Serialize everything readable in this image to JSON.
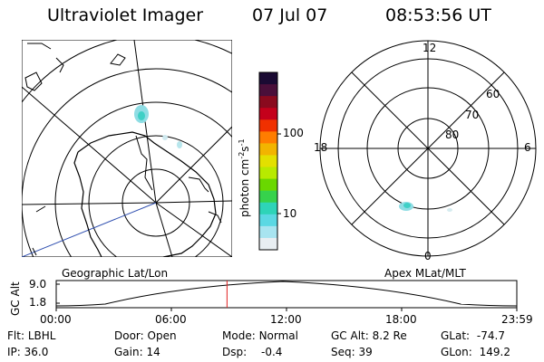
{
  "header": {
    "title": "Ultraviolet Imager",
    "date": "07 Jul 07",
    "time": "08:53:56 UT"
  },
  "left_map": {
    "label": "Geographic Lat/Lon"
  },
  "right_map": {
    "label": "Apex MLat/MLT",
    "mlt_labels": [
      "12",
      "18",
      "6",
      "0"
    ],
    "lat_labels": [
      "60",
      "70",
      "80"
    ]
  },
  "colorbar": {
    "unit_label": "photon cm",
    "unit_exp1": "-2",
    "unit_mid": "s",
    "unit_exp2": "-1",
    "ticks": [
      "100",
      "10"
    ],
    "colors": [
      "#1a0a33",
      "#4a0f3a",
      "#8a0a1e",
      "#c4001b",
      "#f03000",
      "#ff7d00",
      "#f2b400",
      "#e3e000",
      "#b8ea00",
      "#6ad800",
      "#36d24c",
      "#2ed4b8",
      "#5bd8e3",
      "#a8e4f0",
      "#e8eef2"
    ]
  },
  "strip": {
    "y_label": "GC Alt",
    "y_ticks": [
      "9.0",
      "1.8"
    ],
    "x_ticks": [
      "00:00",
      "06:00",
      "12:00",
      "18:00",
      "23:59"
    ],
    "marker_time_hours": 8.9
  },
  "footer": {
    "row1": [
      {
        "key": "Flt:",
        "val": "LBHL"
      },
      {
        "key": "Door:",
        "val": "Open"
      },
      {
        "key": "Mode:",
        "val": "Normal"
      },
      {
        "key": "GC Alt:",
        "val": "8.2 Re"
      },
      {
        "key": "GLat:",
        "val": "-74.7"
      }
    ],
    "row2": [
      {
        "key": "IP:",
        "val": "36.0"
      },
      {
        "key": "Gain:",
        "val": "14"
      },
      {
        "key": "Dsp:",
        "val": "-0.4"
      },
      {
        "key": "Seq:",
        "val": "39"
      },
      {
        "key": "GLon:",
        "val": "149.2"
      }
    ]
  }
}
